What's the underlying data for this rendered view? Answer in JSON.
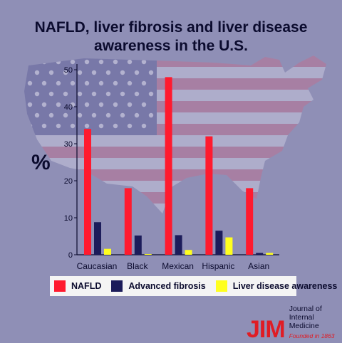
{
  "title_line1": "NAFLD, liver fibrosis and liver disease",
  "title_line2": "awareness in the U.S.",
  "brand": {
    "mark": "JIM",
    "line1": "Journal of",
    "line2": "Internal Medicine",
    "tagline": "Founded in 1863"
  },
  "chart_data": {
    "type": "bar",
    "ylabel": "%",
    "xlabel": "",
    "ylim": [
      0,
      50
    ],
    "yticks": [
      0,
      10,
      20,
      30,
      40,
      50
    ],
    "categories": [
      "Caucasian",
      "Black",
      "Mexican",
      "Hispanic",
      "Asian"
    ],
    "series": [
      {
        "name": "NAFLD",
        "color": "#ff1a2e",
        "values": [
          34,
          18,
          48,
          32,
          18
        ]
      },
      {
        "name": "Advanced fibrosis",
        "color": "#1c1c5a",
        "values": [
          8.8,
          5.2,
          5.3,
          6.5,
          0.5
        ]
      },
      {
        "name": "Liver disease awareness",
        "color": "#ffff1e",
        "values": [
          1.6,
          0.2,
          1.3,
          4.7,
          0.5
        ]
      }
    ],
    "legend_position": "bottom",
    "grid": false
  }
}
